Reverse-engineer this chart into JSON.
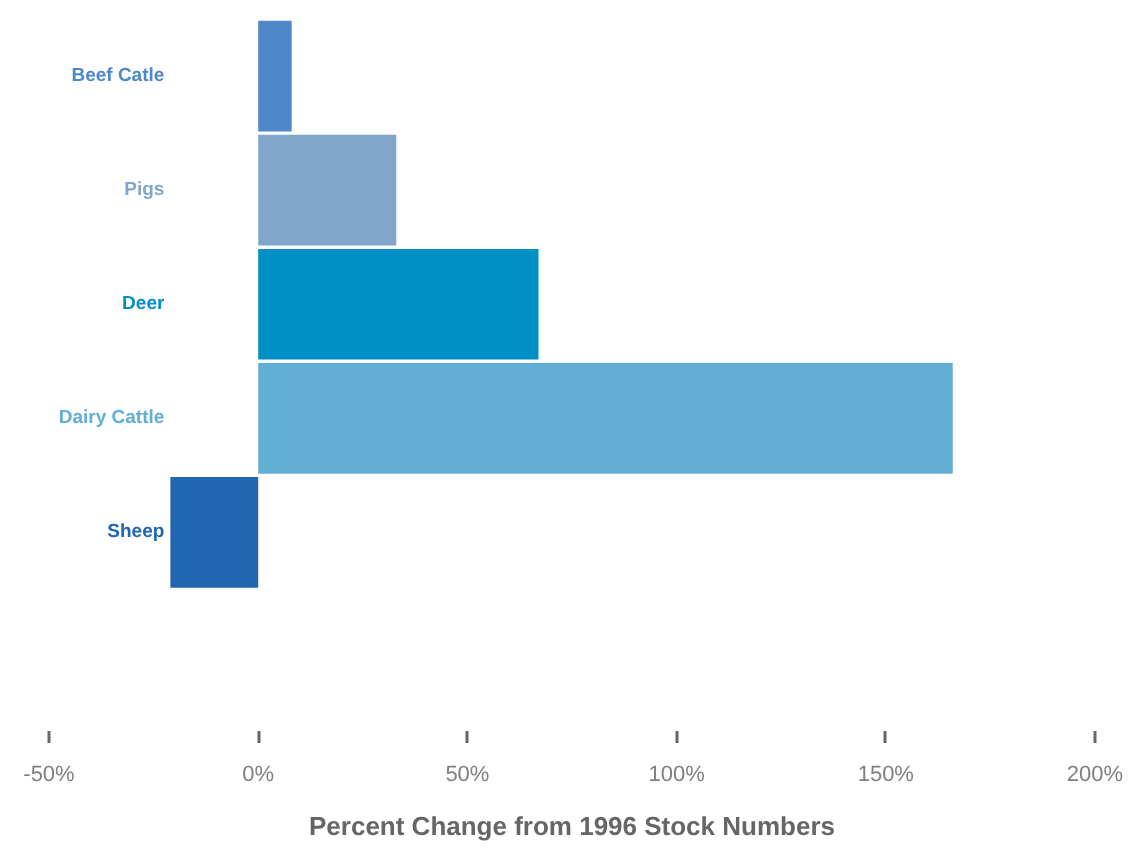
{
  "chart_data": {
    "type": "bar",
    "orientation": "horizontal",
    "categories": [
      "Beef Catle",
      "Pigs",
      "Deer",
      "Dairy Cattle",
      "Sheep"
    ],
    "values": [
      8,
      33,
      67,
      166,
      -21
    ],
    "colors": [
      "#4f88c8",
      "#80a6cc",
      "#0090c5",
      "#63aed4",
      "#2066b1"
    ],
    "xlabel": "Percent Change from 1996 Stock Numbers",
    "xlim": [
      -50,
      200
    ],
    "xticks": [
      {
        "value": -50,
        "label": "-50%"
      },
      {
        "value": 0,
        "label": "0%"
      },
      {
        "value": 50,
        "label": "50%"
      },
      {
        "value": 100,
        "label": "100%"
      },
      {
        "value": 150,
        "label": "150%"
      },
      {
        "value": 200,
        "label": "200%"
      }
    ]
  }
}
